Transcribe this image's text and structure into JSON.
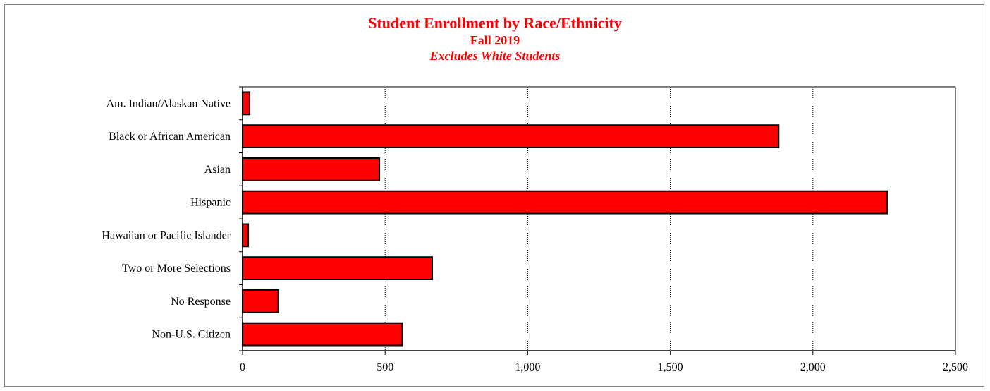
{
  "colors": {
    "bar_fill": "#ff0000",
    "bar_stroke": "#000000",
    "title": "#ff0000",
    "frame": "#7f7f7f",
    "gridline": "#000000"
  },
  "chart_data": {
    "type": "bar",
    "orientation": "horizontal",
    "title": "Student Enrollment by Race/Ethnicity",
    "subtitle": "Fall 2019",
    "note": "Excludes White Students",
    "xlabel": "",
    "ylabel": "",
    "categories": [
      "Am. Indian/Alaskan Native",
      "Black or African American",
      "Asian",
      "Hispanic",
      "Hawaiian or Pacific Islander",
      "Two or More Selections",
      "No Response",
      "Non-U.S. Citizen"
    ],
    "values": [
      25,
      1880,
      480,
      2260,
      20,
      665,
      125,
      560
    ],
    "xlim": [
      0,
      2500
    ],
    "xticks": [
      0,
      500,
      1000,
      1500,
      2000,
      2500
    ],
    "xtick_labels": [
      "0",
      "500",
      "1,000",
      "1,500",
      "2,000",
      "2,500"
    ],
    "grid": "vertical dotted",
    "legend": "none"
  }
}
